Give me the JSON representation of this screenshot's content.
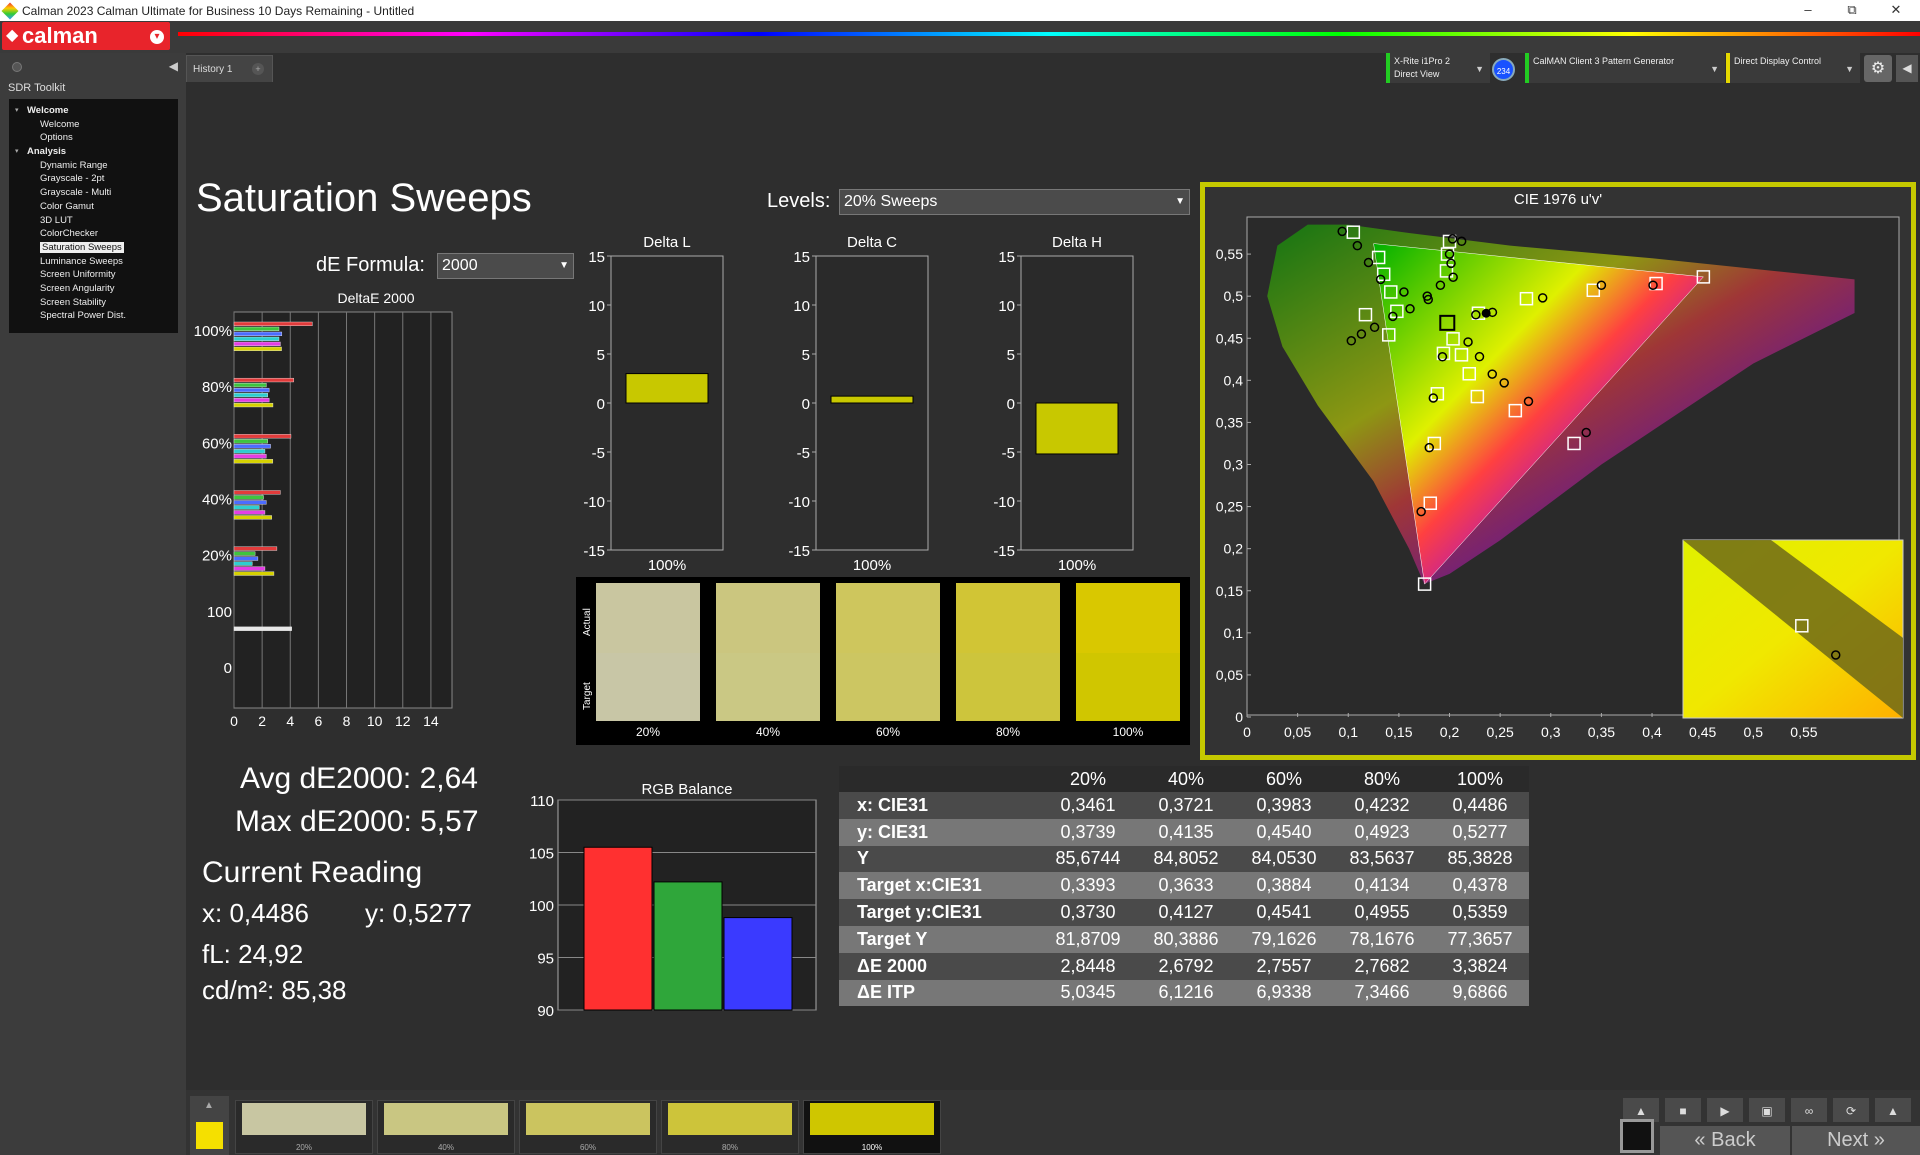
{
  "window": {
    "title": "Calman 2023 Calman Ultimate for Business 10 Days Remaining  - Untitled",
    "min": "–",
    "max": "⧉",
    "close": "✕"
  },
  "brand": {
    "logo": "calman"
  },
  "history_tab": "History 1",
  "sidebar": {
    "toolkit": "SDR Toolkit",
    "items": [
      {
        "label": "Welcome",
        "group": true
      },
      {
        "label": "Welcome"
      },
      {
        "label": "Options"
      },
      {
        "label": "Analysis",
        "group": true
      },
      {
        "label": "Dynamic Range"
      },
      {
        "label": "Grayscale - 2pt"
      },
      {
        "label": "Grayscale - Multi"
      },
      {
        "label": "Color Gamut"
      },
      {
        "label": "3D LUT"
      },
      {
        "label": "ColorChecker"
      },
      {
        "label": "Saturation Sweeps",
        "selected": true
      },
      {
        "label": "Luminance Sweeps"
      },
      {
        "label": "Screen Uniformity"
      },
      {
        "label": "Screen Angularity"
      },
      {
        "label": "Screen Stability"
      },
      {
        "label": "Spectral Power Dist."
      }
    ]
  },
  "devices": {
    "meter_line1": "X-Rite i1Pro 2",
    "meter_line2": "Direct View",
    "badge": "234",
    "pattern": "CalMAN Client 3 Pattern Generator",
    "display": "Direct Display Control"
  },
  "page": {
    "title": "Saturation Sweeps",
    "levels_label": "Levels:",
    "levels_value": "20% Sweeps",
    "formula_label": "dE Formula:",
    "formula_value": "2000"
  },
  "stats": {
    "avg": "Avg dE2000: 2,64",
    "max": "Max dE2000: 5,57",
    "current_title": "Current Reading",
    "x": "x: 0,4486",
    "y": "y: 0,5277",
    "fl": "fL: 24,92",
    "cdm2": "cd/m²: 85,38"
  },
  "chart_data": [
    {
      "type": "bar",
      "title": "DeltaE 2000",
      "orientation": "horizontal",
      "categories": [
        "100%",
        "80%",
        "60%",
        "40%",
        "20%",
        "100",
        "0"
      ],
      "xlim": [
        0,
        15
      ],
      "x_ticks": [
        "0",
        "2",
        "4",
        "6",
        "8",
        "10",
        "12",
        "14"
      ],
      "series": [
        {
          "color": "#e23b3b",
          "values": [
            5.57,
            4.25,
            4.05,
            3.3,
            3.05,
            null,
            null
          ]
        },
        {
          "color": "#3ec43e",
          "values": [
            3.2,
            2.3,
            2.4,
            2.1,
            1.5,
            null,
            null
          ]
        },
        {
          "color": "#4c6cff",
          "values": [
            3.4,
            2.5,
            2.6,
            2.3,
            1.7,
            null,
            null
          ]
        },
        {
          "color": "#2ecfcf",
          "values": [
            3.2,
            2.4,
            2.2,
            1.8,
            1.3,
            null,
            null
          ]
        },
        {
          "color": "#e43ee4",
          "values": [
            3.3,
            2.5,
            2.3,
            2.2,
            2.2,
            null,
            null
          ]
        },
        {
          "color": "#d6d200",
          "values": [
            3.38,
            2.77,
            2.76,
            2.68,
            2.84,
            null,
            null
          ]
        },
        {
          "color": "#e8e8e8",
          "values": [
            null,
            null,
            null,
            null,
            null,
            4.1,
            null
          ]
        }
      ]
    },
    {
      "type": "bar",
      "title": "Delta L",
      "categories": [
        "100%"
      ],
      "values": [
        3
      ],
      "ylim": [
        -15,
        15
      ],
      "y_ticks": [
        "15",
        "10",
        "5",
        "0",
        "-5",
        "-10",
        "-15"
      ],
      "color": "#c8c800"
    },
    {
      "type": "bar",
      "title": "Delta C",
      "categories": [
        "100%"
      ],
      "values": [
        0.7
      ],
      "ylim": [
        -15,
        15
      ],
      "y_ticks": [
        "15",
        "10",
        "5",
        "0",
        "-5",
        "-10",
        "-15"
      ],
      "color": "#c8c800"
    },
    {
      "type": "bar",
      "title": "Delta H",
      "categories": [
        "100%"
      ],
      "values": [
        -5.2
      ],
      "ylim": [
        -15,
        15
      ],
      "y_ticks": [
        "15",
        "10",
        "5",
        "0",
        "-5",
        "-10",
        "-15"
      ],
      "color": "#c8c800"
    },
    {
      "type": "bar",
      "title": "RGB Balance",
      "categories": [
        "100%"
      ],
      "ylim": [
        90,
        110
      ],
      "y_ticks": [
        "110",
        "105",
        "100",
        "95",
        "90"
      ],
      "series": [
        {
          "color": "#ff3030",
          "values": [
            105.5
          ]
        },
        {
          "color": "#2fa63a",
          "values": [
            102.2
          ]
        },
        {
          "color": "#3a3aff",
          "values": [
            98.8
          ]
        }
      ]
    },
    {
      "type": "scatter",
      "title": "CIE 1976 u'v'",
      "xlim": [
        0,
        0.6
      ],
      "ylim": [
        0,
        0.6
      ],
      "x_ticks": [
        "0",
        "0,05",
        "0,1",
        "0,15",
        "0,2",
        "0,25",
        "0,3",
        "0,35",
        "0,4",
        "0,45",
        "0,5",
        "0,55"
      ],
      "y_ticks": [
        "0",
        "0,05",
        "0,1",
        "0,15",
        "0,2",
        "0,25",
        "0,3",
        "0,35",
        "0,4",
        "0,45",
        "0,5",
        "0,55"
      ],
      "gamut": {
        "r": [
          0.4507,
          0.5229
        ],
        "g": [
          0.125,
          0.5625
        ],
        "b": [
          0.1754,
          0.1579
        ]
      },
      "white": [
        0.1978,
        0.4683
      ],
      "targets": [
        [
          0.1754,
          0.1579
        ],
        [
          0.181,
          0.254
        ],
        [
          0.185,
          0.325
        ],
        [
          0.188,
          0.384
        ],
        [
          0.194,
          0.432
        ],
        [
          0.2286,
          0.4797
        ],
        [
          0.276,
          0.497
        ],
        [
          0.342,
          0.507
        ],
        [
          0.404,
          0.515
        ],
        [
          0.4507,
          0.5229
        ],
        [
          0.2035,
          0.4493
        ],
        [
          0.2118,
          0.4303
        ],
        [
          0.2195,
          0.4078
        ],
        [
          0.2275,
          0.3807
        ],
        [
          0.265,
          0.364
        ],
        [
          0.323,
          0.325
        ],
        [
          0.148,
          0.482
        ],
        [
          0.142,
          0.505
        ],
        [
          0.135,
          0.526
        ],
        [
          0.13,
          0.546
        ],
        [
          0.105,
          0.576
        ],
        [
          0.117,
          0.478
        ],
        [
          0.14,
          0.454
        ],
        [
          0.2,
          0.565
        ],
        [
          0.198,
          0.55
        ],
        [
          0.197,
          0.53
        ]
      ],
      "measured": [
        [
          0.172,
          0.244
        ],
        [
          0.18,
          0.32
        ],
        [
          0.184,
          0.379
        ],
        [
          0.193,
          0.428
        ],
        [
          0.226,
          0.4779
        ],
        [
          0.2424,
          0.4808
        ],
        [
          0.292,
          0.498
        ],
        [
          0.35,
          0.513
        ],
        [
          0.401,
          0.513
        ],
        [
          0.2183,
          0.4456
        ],
        [
          0.2296,
          0.4281
        ],
        [
          0.2422,
          0.4074
        ],
        [
          0.254,
          0.397
        ],
        [
          0.278,
          0.375
        ],
        [
          0.335,
          0.338
        ],
        [
          0.103,
          0.447
        ],
        [
          0.113,
          0.455
        ],
        [
          0.126,
          0.463
        ],
        [
          0.144,
          0.476
        ],
        [
          0.161,
          0.485
        ],
        [
          0.179,
          0.496
        ],
        [
          0.191,
          0.513
        ],
        [
          0.2,
          0.55
        ],
        [
          0.203,
          0.568
        ],
        [
          0.094,
          0.577
        ],
        [
          0.109,
          0.56
        ],
        [
          0.12,
          0.54
        ],
        [
          0.132,
          0.52
        ],
        [
          0.155,
          0.505
        ],
        [
          0.178,
          0.5
        ],
        [
          0.2036,
          0.5225
        ],
        [
          0.2015,
          0.539
        ],
        [
          0.212,
          0.5652
        ]
      ],
      "current": [
        0.2362,
        0.4797
      ],
      "inset": {
        "target": [
          0.4378,
          0.5359
        ],
        "measured": [
          0.4486,
          0.5277
        ]
      }
    }
  ],
  "swatches": {
    "actual_label": "Actual",
    "target_label": "Target",
    "items": [
      {
        "label": "20%",
        "actual": "#c9c6a0",
        "target": "#c8c6a6"
      },
      {
        "label": "40%",
        "actual": "#cbc67f",
        "target": "#cac884"
      },
      {
        "label": "60%",
        "actual": "#cec65d",
        "target": "#ccc662"
      },
      {
        "label": "80%",
        "actual": "#d1c535",
        "target": "#cdc53c"
      },
      {
        "label": "100%",
        "actual": "#d9c800",
        "target": "#d0c600"
      }
    ]
  },
  "table": {
    "headers": [
      "",
      "20%",
      "40%",
      "60%",
      "80%",
      "100%"
    ],
    "rows": [
      {
        "label": "x: CIE31",
        "values": [
          "0,3461",
          "0,3721",
          "0,3983",
          "0,4232",
          "0,4486"
        ]
      },
      {
        "label": "y: CIE31",
        "values": [
          "0,3739",
          "0,4135",
          "0,4540",
          "0,4923",
          "0,5277"
        ]
      },
      {
        "label": "Y",
        "values": [
          "85,6744",
          "84,8052",
          "84,0530",
          "83,5637",
          "85,3828"
        ]
      },
      {
        "label": "Target x:CIE31",
        "values": [
          "0,3393",
          "0,3633",
          "0,3884",
          "0,4134",
          "0,4378"
        ]
      },
      {
        "label": "Target y:CIE31",
        "values": [
          "0,3730",
          "0,4127",
          "0,4541",
          "0,4955",
          "0,5359"
        ]
      },
      {
        "label": "Target Y",
        "values": [
          "81,8709",
          "80,3886",
          "79,1626",
          "78,1676",
          "77,3657"
        ]
      },
      {
        "label": "ΔE 2000",
        "values": [
          "2,8448",
          "2,6792",
          "2,7557",
          "2,7682",
          "3,3824"
        ]
      },
      {
        "label": "ΔE ITP",
        "values": [
          "5,0345",
          "6,1216",
          "6,9338",
          "7,3466",
          "9,6866"
        ]
      }
    ]
  },
  "bottom": {
    "thumbs": [
      {
        "label": "20%",
        "color": "#c8c6a2"
      },
      {
        "label": "40%",
        "color": "#c9c682"
      },
      {
        "label": "60%",
        "color": "#cbc45f"
      },
      {
        "label": "80%",
        "color": "#cdc43a"
      },
      {
        "label": "100%",
        "color": "#cfc600"
      }
    ],
    "back": "Back",
    "next": "Next"
  }
}
